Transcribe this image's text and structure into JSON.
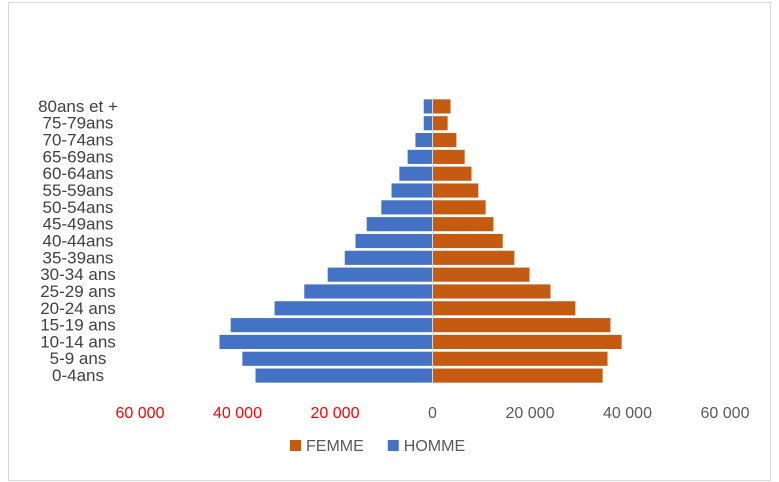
{
  "chart_data": {
    "type": "pyramid",
    "categories": [
      "0-4ans",
      "5-9 ans",
      "10-14 ans",
      "15-19 ans",
      "20-24 ans",
      "25-29 ans",
      "30-34 ans",
      "35-39ans",
      "40-44ans",
      "45-49ans",
      "50-54ans",
      "55-59ans",
      "60-64ans",
      "65-69ans",
      "70-74ans",
      "75-79ans",
      "80ans et +"
    ],
    "series": [
      {
        "name": "FEMME",
        "color": "#c55a11",
        "values": [
          34900,
          35900,
          38800,
          36500,
          29300,
          24200,
          19900,
          16800,
          14400,
          12500,
          10900,
          9400,
          8000,
          6600,
          4900,
          3100,
          3700
        ]
      },
      {
        "name": "HOMME",
        "color": "#4472c4",
        "values": [
          -36300,
          -39000,
          -43700,
          -41400,
          -32400,
          -26300,
          -21500,
          -18000,
          -15800,
          -13500,
          -10500,
          -8400,
          -6800,
          -5100,
          -3500,
          -1800,
          -1800
        ]
      }
    ],
    "xlim": [
      -60000,
      60000
    ],
    "xticks": [
      {
        "value": -60000,
        "label": "60 000"
      },
      {
        "value": -40000,
        "label": "40 000"
      },
      {
        "value": -20000,
        "label": "20 000"
      },
      0,
      {
        "value": 20000,
        "label": "20 000"
      },
      {
        "value": 40000,
        "label": "40 000"
      },
      {
        "value": 60000,
        "label": "60 000"
      }
    ],
    "negative_tick_color": "#ff0000",
    "tick_color": "#595959",
    "legend": "bottom"
  }
}
